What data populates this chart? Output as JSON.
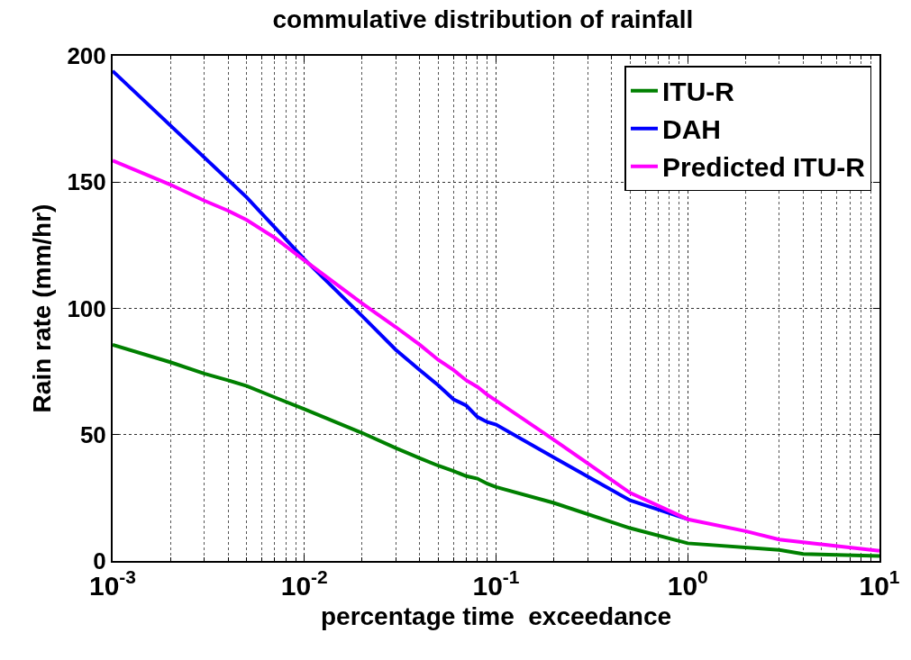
{
  "chart_data": {
    "type": "line",
    "title": "commulative distribution of rainfall",
    "xlabel": "percentage time  exceedance",
    "ylabel": "Rain rate (mm/hr)",
    "log": "x",
    "grid": true,
    "legend": "top right",
    "line_style": "solid",
    "marker": "none",
    "xlim": [
      0.001,
      10
    ],
    "ylim": [
      0,
      200
    ],
    "xticks": [
      {
        "value": 0.001,
        "label": "10$^{-3}$"
      },
      {
        "value": 0.01,
        "label": "10$^{-2}$"
      },
      {
        "value": 0.1,
        "label": "10$^{-1}$"
      },
      {
        "value": 1,
        "label": "10$^{0}$"
      },
      {
        "value": 10,
        "label": "10$^{1}$"
      }
    ],
    "yticks": [
      0,
      50,
      100,
      150,
      200
    ],
    "series": [
      {
        "name": "ITU-R",
        "color": "#008000",
        "x": [
          0.001,
          0.002,
          0.003,
          0.004,
          0.005,
          0.007,
          0.01,
          0.02,
          0.03,
          0.04,
          0.05,
          0.06,
          0.07,
          0.08,
          0.09,
          0.1,
          0.2,
          0.5,
          1,
          3,
          4,
          10
        ],
        "values": [
          85.6,
          78.7,
          74.2,
          71.5,
          69.3,
          64.8,
          60.1,
          50.7,
          44.7,
          40.7,
          37.7,
          35.6,
          33.6,
          32.6,
          30.6,
          29.3,
          23,
          13,
          7,
          4.4,
          2.8,
          2
        ]
      },
      {
        "name": "DAH",
        "color": "#0000ff",
        "x": [
          0.001,
          0.005,
          0.01,
          0.02,
          0.03,
          0.04,
          0.05,
          0.06,
          0.07,
          0.08,
          0.09,
          0.1,
          0.2,
          0.5,
          1
        ],
        "values": [
          194,
          144,
          119.5,
          97,
          83.6,
          75.6,
          69.5,
          64,
          61.5,
          57,
          55,
          54,
          41,
          24,
          16.5
        ]
      },
      {
        "name": "Predicted ITU-R",
        "color": "#ff00ff",
        "x": [
          0.001,
          0.002,
          0.003,
          0.004,
          0.005,
          0.007,
          0.01,
          0.02,
          0.03,
          0.04,
          0.05,
          0.06,
          0.07,
          0.08,
          0.09,
          0.1,
          0.2,
          0.5,
          1,
          2,
          3,
          10
        ],
        "values": [
          158.5,
          149,
          142.7,
          138.7,
          135,
          128,
          119,
          102,
          92.6,
          85.6,
          79.6,
          75.6,
          71.5,
          68.9,
          65.8,
          63.5,
          48,
          27,
          16.5,
          11.8,
          8.5,
          4
        ]
      }
    ]
  }
}
